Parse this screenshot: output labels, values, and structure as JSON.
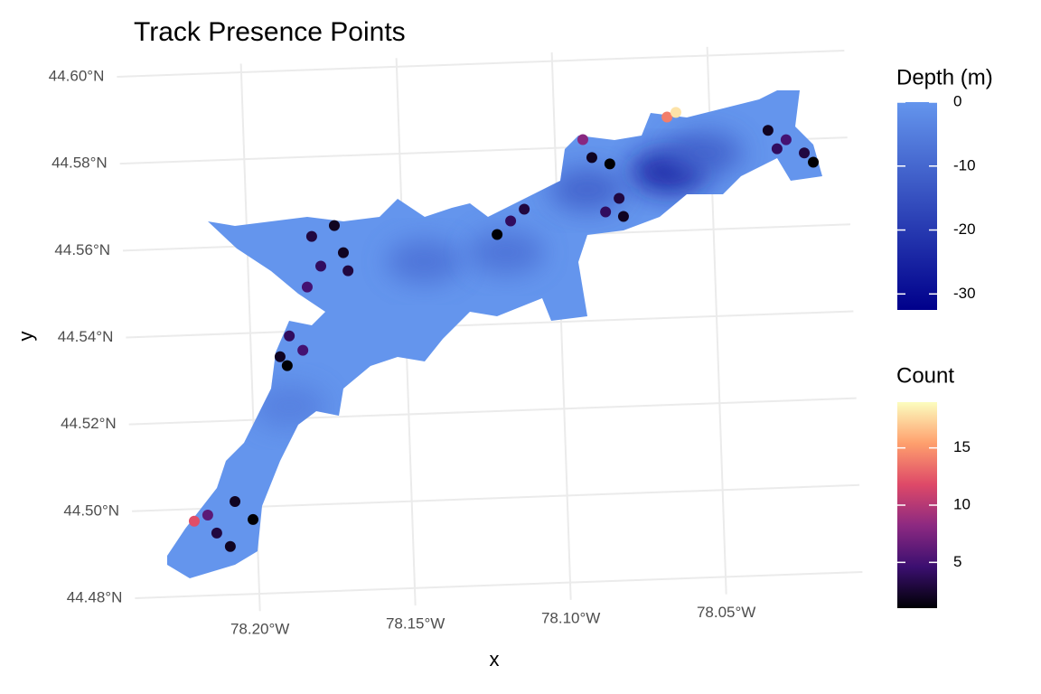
{
  "chart_data": {
    "type": "map",
    "title": "Track Presence Points",
    "x_label": "x",
    "y_label": "y",
    "xlim": [
      -78.24,
      -78.006
    ],
    "ylim": [
      44.476,
      44.602
    ],
    "xticks": [
      {
        "value": -78.2,
        "label": "78.20°W"
      },
      {
        "value": -78.15,
        "label": "78.15°W"
      },
      {
        "value": -78.1,
        "label": "78.10°W"
      },
      {
        "value": -78.05,
        "label": "78.05°W"
      }
    ],
    "yticks": [
      {
        "value": 44.48,
        "label": "44.48°N"
      },
      {
        "value": 44.5,
        "label": "44.50°N"
      },
      {
        "value": 44.52,
        "label": "44.52°N"
      },
      {
        "value": 44.54,
        "label": "44.54°N"
      },
      {
        "value": 44.56,
        "label": "44.56°N"
      },
      {
        "value": 44.58,
        "label": "44.58°N"
      },
      {
        "value": 44.6,
        "label": "44.60°N"
      }
    ],
    "grid": true,
    "depth_scale": {
      "title": "Depth (m)",
      "lim": [
        -32.5,
        0
      ],
      "ticks": [
        0,
        -10,
        -20,
        -30
      ],
      "colors": [
        "#00008b",
        "#6495ed"
      ]
    },
    "count_scale": {
      "title": "Count",
      "lim": [
        1,
        19
      ],
      "ticks": [
        5,
        10,
        15
      ],
      "colors": [
        "#000004",
        "#3b0f70",
        "#8c2981",
        "#de4968",
        "#fe9f6d",
        "#fcfdbf"
      ]
    },
    "depth_cells": {
      "lon": [
        -78.0638,
        -78.052,
        -78.0901,
        -78.1432,
        -78.1169,
        -78.1883
      ],
      "lat": [
        44.5736,
        44.5776,
        44.5702,
        44.555,
        44.5564,
        44.5228
      ],
      "depth": [
        -26,
        -12,
        -12,
        -8,
        -8,
        -5
      ]
    },
    "points": {
      "lon": [
        -78.2201,
        -78.2157,
        -78.2068,
        -78.2012,
        -78.2088,
        -78.213,
        -78.1907,
        -78.1875,
        -78.1833,
        -78.1885,
        -78.1792,
        -78.1718,
        -78.1766,
        -78.1692,
        -78.1812,
        -78.1679,
        -78.1196,
        -78.1151,
        -78.1106,
        -78.091,
        -78.0883,
        -78.0826,
        -78.0845,
        -78.08,
        -78.0788,
        -78.0637,
        -78.0608,
        -78.0314,
        -78.0257,
        -78.02,
        -78.0172,
        -78.0287
      ],
      "lat": [
        44.4972,
        44.4985,
        44.5014,
        44.4971,
        44.4911,
        44.4943,
        44.5343,
        44.539,
        44.5356,
        44.5322,
        44.5617,
        44.564,
        44.5548,
        44.5577,
        44.5501,
        44.5535,
        44.5606,
        44.5636,
        44.5662,
        44.5817,
        44.5775,
        44.5759,
        44.5649,
        44.5679,
        44.5637,
        44.5862,
        44.5872,
        44.5823,
        44.58,
        44.5768,
        44.5746,
        44.578
      ],
      "count": [
        12,
        6,
        2,
        1,
        2,
        3,
        2,
        4,
        5,
        1,
        3,
        2,
        4,
        2,
        5,
        3,
        1,
        4,
        3,
        8,
        2,
        1,
        4,
        3,
        2,
        14,
        18,
        2,
        5,
        3,
        1,
        4
      ]
    }
  }
}
